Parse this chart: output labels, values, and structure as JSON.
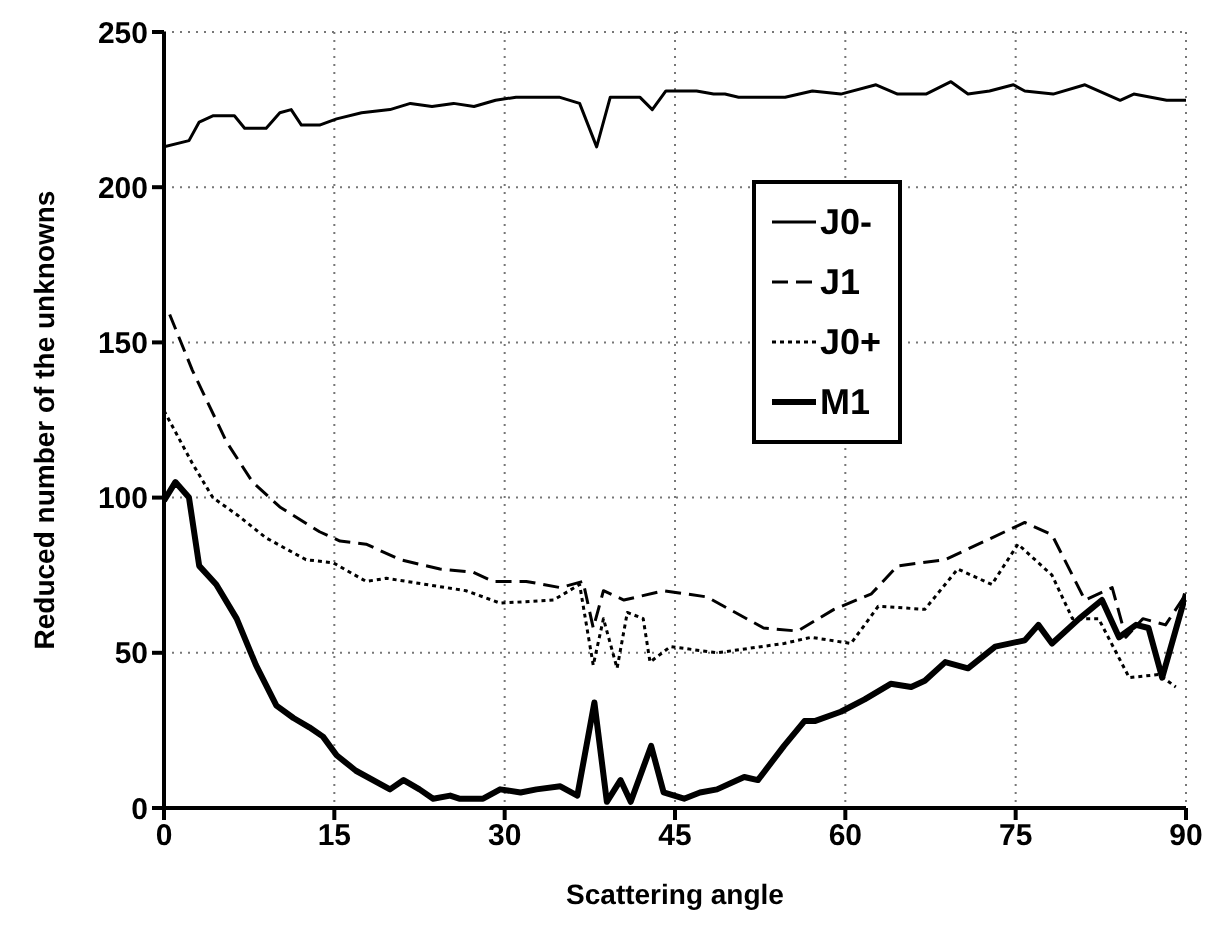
{
  "chart_data": {
    "type": "line",
    "xlabel": "Scattering angle",
    "ylabel": "Reduced number of the unknowns",
    "xlim": [
      0,
      90
    ],
    "ylim": [
      0,
      250
    ],
    "xticks": [
      0,
      15,
      30,
      45,
      60,
      75,
      90
    ],
    "yticks": [
      0,
      50,
      100,
      150,
      200,
      250
    ],
    "grid": true,
    "legend": "top right",
    "marker": "none",
    "series": [
      {
        "name": "J0-",
        "color": "#000000",
        "line_style": "solid",
        "x": [
          0,
          2.2,
          3.1,
          4.3,
          6.2,
          7.1,
          9,
          10.2,
          11.2,
          12.1,
          13.7,
          15.2,
          17.4,
          19.9,
          21.7,
          23.6,
          25.5,
          27.3,
          29.2,
          31,
          34.8,
          36.6,
          38.1,
          39.3,
          41.9,
          43,
          44.2,
          46.9,
          48.4,
          49.4,
          50.6,
          54.7,
          57.1,
          59.6,
          62.7,
          64.6,
          67.1,
          69.3,
          70.8,
          72.7,
          74.8,
          75.8,
          78.3,
          81.1,
          84.2,
          85.4,
          88.3,
          90
        ],
        "values": [
          213,
          215,
          221,
          223,
          223,
          219,
          219,
          224,
          225,
          220,
          220,
          222,
          224,
          225,
          227,
          226,
          227,
          226,
          228,
          229,
          229,
          227,
          213,
          229,
          229,
          225,
          231,
          231,
          230,
          230,
          229,
          229,
          231,
          230,
          233,
          230,
          230,
          234,
          230,
          231,
          233,
          231,
          230,
          233,
          228,
          230,
          228,
          228
        ]
      },
      {
        "name": "J1",
        "color": "#000000",
        "line_style": "dashed",
        "x": [
          0.5,
          2.5,
          5.5,
          7.8,
          10.2,
          13.7,
          15.5,
          17.8,
          20.8,
          24.3,
          27.2,
          29,
          31.9,
          34.9,
          36.9,
          37.8,
          38.7,
          40.5,
          44,
          47.8,
          52.8,
          55.8,
          59,
          62.3,
          64.6,
          68.8,
          72.3,
          75.8,
          78.2,
          81.1,
          83.5,
          84.7,
          86.2,
          88.2,
          90
        ],
        "values": [
          159,
          141,
          118,
          105,
          97,
          89,
          86,
          85,
          80,
          77,
          76,
          73,
          73,
          71,
          73,
          58,
          70,
          67,
          70,
          68,
          58,
          57,
          64,
          69,
          78,
          80,
          86,
          92,
          88,
          67,
          71,
          55,
          61,
          59,
          69
        ]
      },
      {
        "name": "J0+",
        "color": "#000000",
        "line_style": "dotted",
        "x": [
          0,
          2.5,
          4.3,
          6.6,
          9,
          12.5,
          14.9,
          17.8,
          19.6,
          23.1,
          26.6,
          29.6,
          34.3,
          36.6,
          37.8,
          38.7,
          39.9,
          40.8,
          42.2,
          42.8,
          44.6,
          48.7,
          54.6,
          57,
          60.5,
          62.9,
          67,
          69.9,
          72.9,
          75.2,
          78.2,
          80,
          82.3,
          85,
          87.6,
          89.1
        ],
        "values": [
          128,
          111,
          100,
          94,
          87,
          80,
          79,
          73,
          74,
          72,
          70,
          66,
          67,
          72,
          46,
          61,
          45,
          63,
          61,
          47,
          52,
          50,
          53,
          55,
          53,
          65,
          64,
          77,
          72,
          85,
          75,
          61,
          61,
          42,
          43,
          39
        ]
      },
      {
        "name": "M1",
        "color": "#000000",
        "line_style": "solid",
        "x": [
          0,
          1,
          2.2,
          3.1,
          4.6,
          6.4,
          8.1,
          9.9,
          11.4,
          12.8,
          14,
          15.2,
          16.9,
          19.9,
          21.1,
          22.5,
          23.7,
          25.2,
          26,
          28.1,
          29.6,
          31.4,
          32.8,
          34.9,
          36.4,
          37.9,
          39,
          40.2,
          41.1,
          42.9,
          44,
          45.8,
          47.2,
          48.7,
          51.1,
          52.3,
          54.6,
          56.4,
          57.3,
          59.6,
          61.7,
          64,
          65.8,
          67,
          68.8,
          70.8,
          73.2,
          75.8,
          77,
          78.2,
          80.6,
          82.6,
          84.1,
          85.6,
          86.7,
          87.9,
          90
        ],
        "values": [
          99,
          105,
          100,
          78,
          72,
          61,
          46,
          33,
          29,
          26,
          23,
          17,
          12,
          6,
          9,
          6,
          3,
          4,
          3,
          3,
          6,
          5,
          6,
          7,
          4,
          34,
          2,
          9,
          2,
          20,
          5,
          3,
          5,
          6,
          10,
          9,
          20,
          28,
          28,
          31,
          35,
          40,
          39,
          41,
          47,
          45,
          52,
          54,
          59,
          53,
          61,
          67,
          55,
          59,
          58,
          42,
          69
        ]
      }
    ]
  }
}
